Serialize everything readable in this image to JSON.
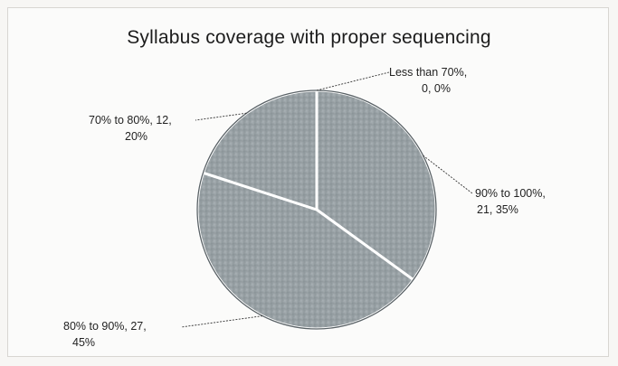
{
  "chart_data": {
    "type": "pie",
    "title": "Syllabus coverage with proper sequencing",
    "categories": [
      "Less than 70%",
      "90% to 100%",
      "80% to 90%",
      "70% to 80%"
    ],
    "values": [
      0,
      21,
      27,
      12
    ],
    "percentages": [
      "0%",
      "35%",
      "45%",
      "20%"
    ],
    "data_labels": [
      [
        "Less than 70%,",
        "0, 0%"
      ],
      [
        "90% to 100%,",
        "21, 35%"
      ],
      [
        "80% to 90%, 27,",
        "45%"
      ],
      [
        "70% to 80%, 12,",
        "20%"
      ]
    ],
    "colors": {
      "slice_fill": "#9ea7ab",
      "slice_fill_dark": "#7f888c",
      "separator": "#ffffff"
    }
  }
}
